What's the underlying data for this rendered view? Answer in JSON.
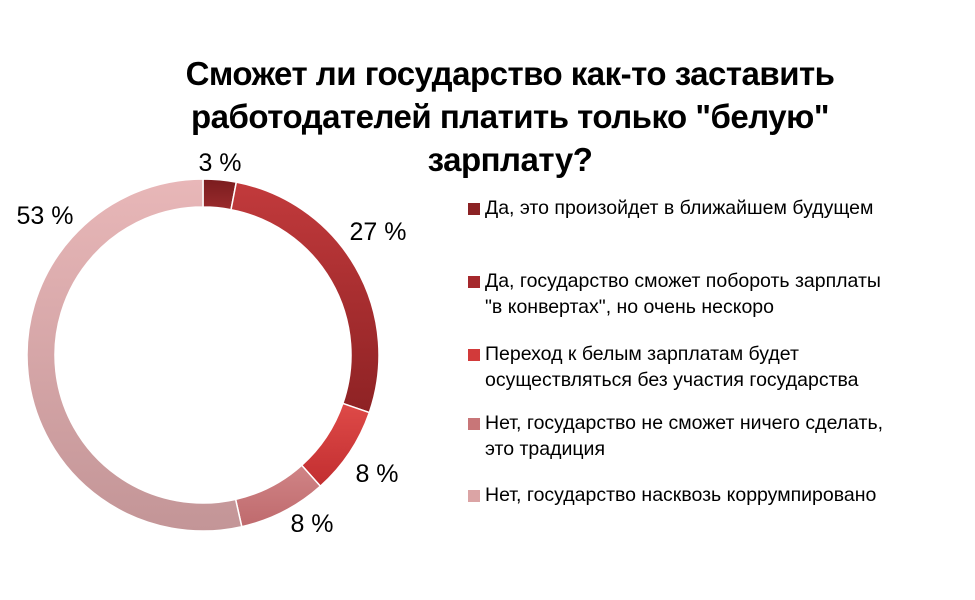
{
  "chart_data": {
    "type": "pie",
    "donut": true,
    "title_lines": [
      "Сможет ли государство как-то заставить",
      "работодателей платить только \"белую\"",
      "зарплату?"
    ],
    "legend_position": "right",
    "slices": [
      {
        "label": "Да, это произойдет в ближайшем будущем",
        "value": 3,
        "display": "3 %",
        "color": "#8b2224"
      },
      {
        "label": "Да, государство сможет побороть зарплаты\n\"в конвертах\", но очень нескоро",
        "value": 27,
        "display": "27 %",
        "color": "#a5282c"
      },
      {
        "label": "Переход к белым зарплатам будет\nосуществляться без участия государства",
        "value": 8,
        "display": "8 %",
        "color": "#d23a3a"
      },
      {
        "label": "Нет, государство не сможет ничего сделать,\nэто традиция",
        "value": 8,
        "display": "8 %",
        "color": "#c87678"
      },
      {
        "label": "Нет, государство насквозь коррумпировано",
        "value": 53,
        "display": "53 %",
        "color": "#dba4a5"
      }
    ]
  }
}
